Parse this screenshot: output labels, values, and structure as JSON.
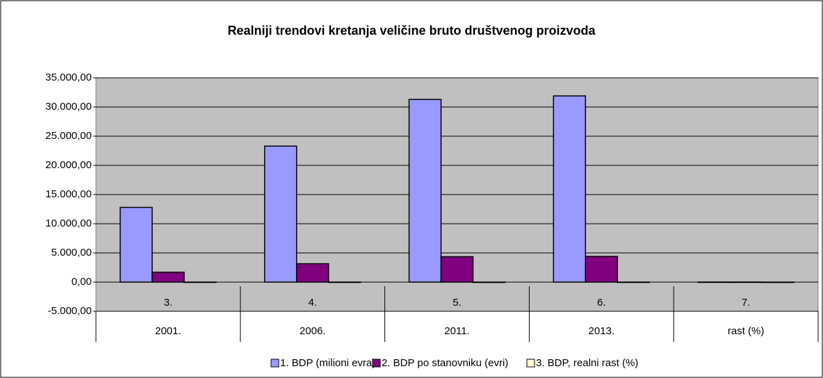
{
  "chart_data": {
    "type": "bar",
    "title": "Realniji trendovi kretanja veličine bruto društvenog proizvoda",
    "categories": [
      "3.",
      "4.",
      "5.",
      "6.",
      "7."
    ],
    "category_groups": [
      "2001.",
      "2006.",
      "2011.",
      "2013.",
      "rast (%)"
    ],
    "series": [
      {
        "name": "1. BDP (milioni evra)",
        "color": "#9999ff",
        "values": [
          12800,
          23300,
          31300,
          31900,
          12
        ]
      },
      {
        "name": "2. BDP po stanovniku (evri)",
        "color": "#800080",
        "values": [
          1700,
          3150,
          4350,
          4400,
          12
        ]
      },
      {
        "name": "3. BDP, realni rast (%)",
        "color": "#ffffcc",
        "values": [
          5.6,
          5.4,
          1.4,
          2.5,
          0
        ]
      }
    ],
    "ylim": [
      -5000,
      35000
    ],
    "yticks": [
      {
        "value": -5000,
        "label": "-5.000,00"
      },
      {
        "value": 0,
        "label": "0,00"
      },
      {
        "value": 5000,
        "label": "5.000,00"
      },
      {
        "value": 10000,
        "label": "10.000,00"
      },
      {
        "value": 15000,
        "label": "15.000,00"
      },
      {
        "value": 20000,
        "label": "20.000,00"
      },
      {
        "value": 25000,
        "label": "25.000,00"
      },
      {
        "value": 30000,
        "label": "30.000,00"
      },
      {
        "value": 35000,
        "label": "35.000,00"
      }
    ],
    "grid": true,
    "legend": "bottom"
  }
}
